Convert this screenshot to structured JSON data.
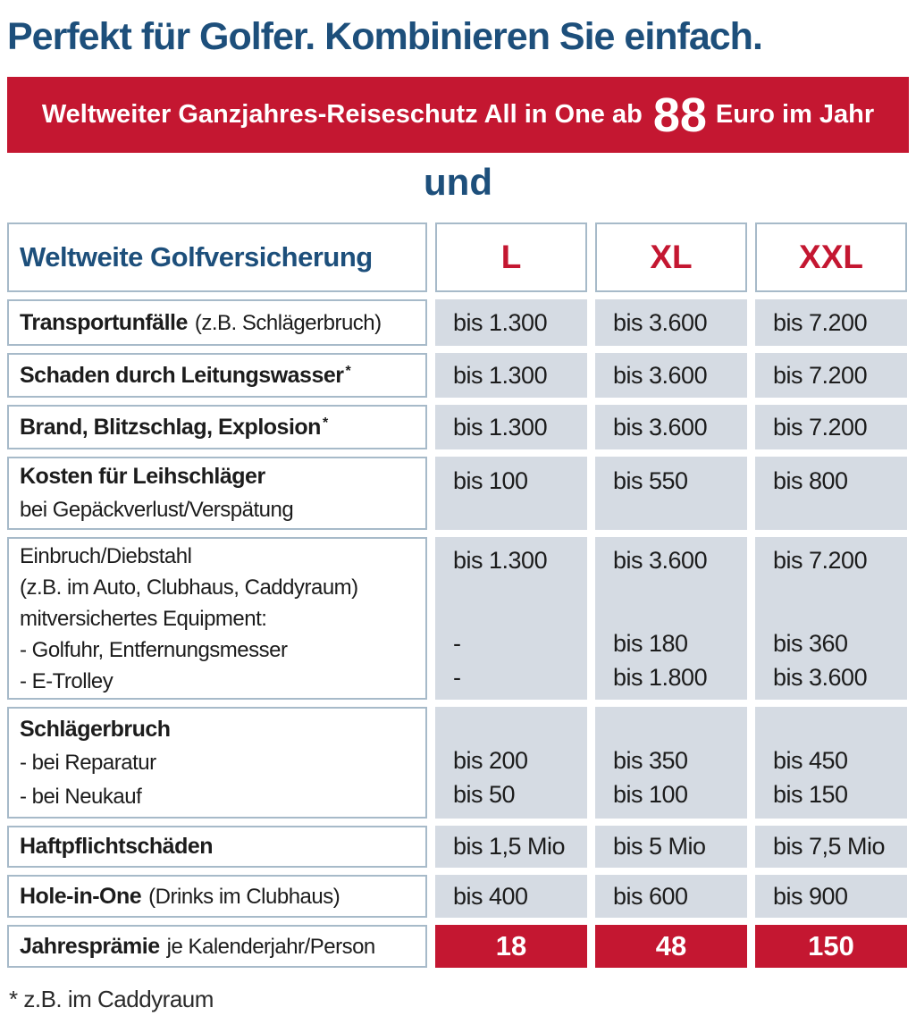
{
  "page": {
    "title": "Perfekt für Golfer. Kombinieren Sie einfach.",
    "banner": {
      "text_before": "Weltweiter Ganzjahres-Reiseschutz All in One ab",
      "price": "88",
      "text_after": "Euro im Jahr"
    },
    "connector": "und",
    "footnote": "* z.B. im Caddyraum"
  },
  "colors": {
    "accent_red": "#C41731",
    "heading_blue": "#1D4F7B",
    "value_cell_bg": "#D5DBE3",
    "cell_border": "#A7BAC9"
  },
  "table": {
    "header": {
      "label": "Weltweite Golfversicherung",
      "columns": [
        "L",
        "XL",
        "XXL"
      ]
    },
    "rows": [
      {
        "label_bold": "Transportunfälle",
        "label_normal": "(z.B. Schlägerbruch)",
        "values": [
          "bis 1.300",
          "bis 3.600",
          "bis 7.200"
        ]
      },
      {
        "label_bold": "Schaden durch Leitungswasser",
        "asterisk": "*",
        "values": [
          "bis 1.300",
          "bis 3.600",
          "bis 7.200"
        ]
      },
      {
        "label_bold": "Brand, Blitzschlag, Explosion",
        "asterisk": "*",
        "values": [
          "bis 1.300",
          "bis 3.600",
          "bis 7.200"
        ]
      },
      {
        "label_bold": "Kosten für Leihschläger",
        "label_line2": "bei Gepäckverlust/Verspätung",
        "values": [
          "bis 100",
          "bis 550",
          "bis 800"
        ]
      },
      {
        "label_lines": [
          "Einbruch/Diebstahl",
          "(z.B. im Auto, Clubhaus, Caddyraum)",
          "mitversichertes Equipment:",
          "- Golfuhr, Entfernungsmesser",
          "- E-Trolley"
        ],
        "values_top": [
          "bis 1.300",
          "bis 3.600",
          "bis 7.200"
        ],
        "values_line1": [
          "-",
          "bis 180",
          "bis 360"
        ],
        "values_line2": [
          "-",
          "bis 1.800",
          "bis 3.600"
        ]
      },
      {
        "label_bold": "Schlägerbruch",
        "label_line2": "- bei Reparatur",
        "label_line3": "- bei Neukauf",
        "values_line1": [
          "bis 200",
          "bis 350",
          "bis 450"
        ],
        "values_line2": [
          "bis 50",
          "bis 100",
          "bis 150"
        ]
      },
      {
        "label_bold": "Haftpflichtschäden",
        "values": [
          "bis 1,5 Mio",
          "bis 5 Mio",
          "bis 7,5 Mio"
        ]
      },
      {
        "label_bold": "Hole-in-One",
        "label_normal": "(Drinks im Clubhaus)",
        "values": [
          "bis 400",
          "bis 600",
          "bis 900"
        ]
      },
      {
        "label_bold": "Jahresprämie",
        "label_normal": "je Kalenderjahr/Person",
        "values": [
          "18",
          "48",
          "150"
        ]
      }
    ]
  }
}
